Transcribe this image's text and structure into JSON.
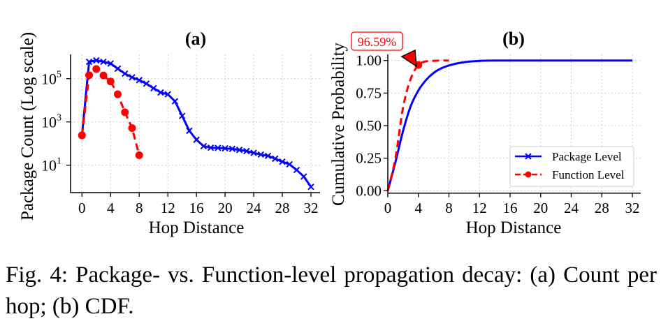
{
  "caption": "Fig. 4: Package- vs. Function-level propagation decay: (a) Count per hop; (b) CDF.",
  "colors": {
    "package": "#0000ff",
    "function": "#ff0000",
    "grid": "#cccccc",
    "axis": "#000000"
  },
  "chart_data": [
    {
      "id": "a",
      "type": "line",
      "title": "(a)",
      "xlabel": "Hop Distance",
      "ylabel": "Package Count (Log scale)",
      "yscale": "log",
      "xlim": [
        -1.5,
        33.5
      ],
      "ylim_log10": [
        -1.2,
        6.4
      ],
      "xticks": [
        0,
        4,
        8,
        12,
        16,
        20,
        24,
        28,
        32
      ],
      "yticks": [
        {
          "value": 10,
          "base": "10",
          "exp": "1"
        },
        {
          "value": 1000,
          "base": "10",
          "exp": "3"
        },
        {
          "value": 100000,
          "base": "10",
          "exp": "5"
        }
      ],
      "grid": true,
      "series": [
        {
          "name": "Package Level",
          "color": "#0000ff",
          "style": "solid",
          "marker": "x",
          "x": [
            0,
            1,
            2,
            3,
            4,
            5,
            6,
            7,
            8,
            9,
            10,
            11,
            12,
            13,
            14,
            15,
            16,
            17,
            18,
            19,
            20,
            21,
            22,
            23,
            24,
            25,
            26,
            27,
            28,
            29,
            30,
            31,
            32
          ],
          "y": [
            240,
            600000,
            700000,
            600000,
            500000,
            290000,
            170000,
            115000,
            85000,
            59000,
            36000,
            23000,
            19000,
            9000,
            1900,
            390,
            150,
            76,
            64,
            63,
            60,
            57,
            51,
            45,
            37,
            31,
            27,
            20,
            14.5,
            11,
            6,
            3,
            1
          ]
        },
        {
          "name": "Function Level",
          "color": "#ff0000",
          "style": "dashed",
          "marker": "o",
          "x": [
            0,
            1,
            2,
            3,
            4,
            5,
            6,
            7,
            8
          ],
          "y": [
            240,
            145000,
            280000,
            140000,
            74000,
            19000,
            2800,
            520,
            29
          ]
        }
      ]
    },
    {
      "id": "b",
      "type": "line",
      "title": "(b)",
      "xlabel": "Hop Distance",
      "ylabel": "Cumulative Probability",
      "xlim": [
        0,
        33.5
      ],
      "ylim": [
        0,
        1.06
      ],
      "xticks": [
        0,
        4,
        8,
        12,
        16,
        20,
        24,
        28,
        32
      ],
      "yticks": [
        0.0,
        0.25,
        0.5,
        0.75,
        1.0
      ],
      "ytick_labels": [
        "0.00",
        "0.25",
        "0.50",
        "0.75",
        "1.00"
      ],
      "grid": true,
      "legend": {
        "position": "lower-right",
        "entries": [
          {
            "label": "Package Level",
            "color": "#0000ff",
            "style": "solid",
            "marker": "x"
          },
          {
            "label": "Function Level",
            "color": "#ff0000",
            "style": "dashed",
            "marker": "o"
          }
        ]
      },
      "annotation": {
        "text": "96.59%",
        "x": 4,
        "y": 0.9659,
        "color": "#ff0000"
      },
      "series": [
        {
          "name": "Package Level",
          "color": "#0000ff",
          "style": "solid",
          "x": [
            0,
            1,
            2,
            3,
            4,
            5,
            6,
            7,
            8,
            9,
            10,
            11,
            12,
            13,
            14,
            16,
            20,
            24,
            28,
            32
          ],
          "y": [
            0,
            0.22,
            0.46,
            0.65,
            0.77,
            0.85,
            0.905,
            0.94,
            0.962,
            0.977,
            0.987,
            0.993,
            0.997,
            0.999,
            1.0,
            1.0,
            1.0,
            1.0,
            1.0,
            1.0
          ]
        },
        {
          "name": "Function Level",
          "color": "#ff0000",
          "style": "dashed",
          "highlight_x": 4,
          "x": [
            0,
            1,
            2,
            3,
            4,
            5,
            6,
            7,
            8
          ],
          "y": [
            0,
            0.25,
            0.64,
            0.86,
            0.9659,
            0.993,
            0.998,
            0.9995,
            1.0
          ]
        }
      ]
    }
  ]
}
